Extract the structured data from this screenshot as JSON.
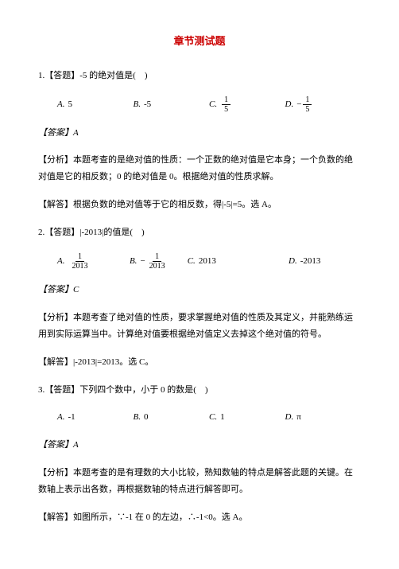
{
  "title": "章节测试题",
  "q1": {
    "stem": "1.【答题】-5 的绝对值是(　)",
    "opts": {
      "A": "5",
      "B": "-5",
      "C_num": "1",
      "C_den": "5",
      "D_num": "1",
      "D_den": "5"
    },
    "ans": "【答案】A",
    "analysis": "【分析】本题考查的是绝对值的性质：一个正数的绝对值是它本身；一个负数的绝对值是它的相反数；0 的绝对值是 0。根据绝对值的性质求解。",
    "solve": "【解答】根据负数的绝对值等于它的相反数，得|-5|=5。选 A。"
  },
  "q2": {
    "stem": "2.【答题】|-2013|的值是(　)",
    "opts": {
      "A_num": "1",
      "A_den": "2013",
      "B_num": "1",
      "B_den": "2013",
      "C": "2013",
      "D": "-2013"
    },
    "ans": "【答案】C",
    "analysis": "【分析】本题考查了绝对值的性质，要求掌握绝对值的性质及其定义，并能熟练运用到实际运算当中。计算绝对值要根据绝对值定义去掉这个绝对值的符号。",
    "solve": "【解答】|-2013|=2013。选 C。"
  },
  "q3": {
    "stem": "3.【答题】下列四个数中，小于 0 的数是(　)",
    "opts": {
      "A": "-1",
      "B": "0",
      "C": "1",
      "D": "π"
    },
    "ans": "【答案】A",
    "analysis": "【分析】本题考查的是有理数的大小比较，熟知数轴的特点是解答此题的关键。在数轴上表示出各数，再根据数轴的特点进行解答即可。",
    "solve": "【解答】如图所示，∵-1 在 0 的左边，∴-1<0。选 A。"
  },
  "colors": {
    "title_color": "#cc0000",
    "text_color": "#000000",
    "background": "#ffffff"
  },
  "typography": {
    "title_fontsize": 13,
    "body_fontsize": 11,
    "line_height": 1.9
  }
}
